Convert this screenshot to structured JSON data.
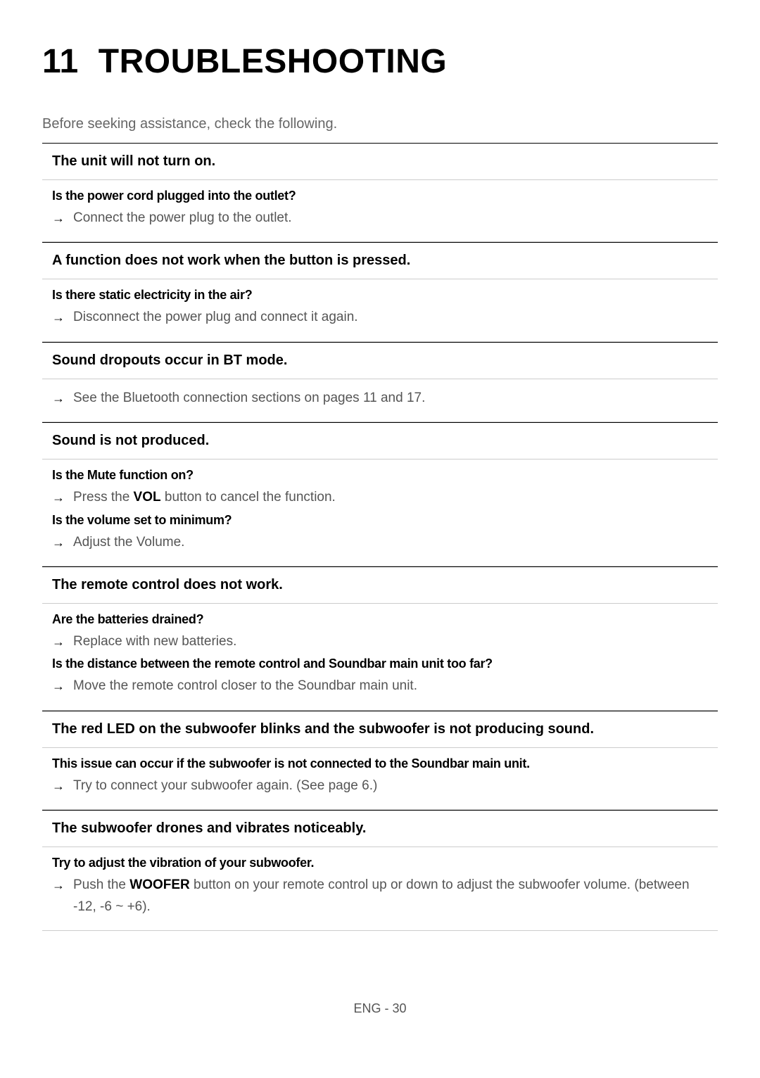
{
  "chapter": {
    "number": "11",
    "title": "TROUBLESHOOTING"
  },
  "intro": "Before seeking assistance, check the following.",
  "sections": [
    {
      "header": "The unit will not turn on.",
      "items": [
        {
          "question": "Is the power cord plugged into the outlet?",
          "answer_parts": [
            {
              "text": "Connect the power plug to the outlet."
            }
          ]
        }
      ]
    },
    {
      "header": "A function does not work when the button is pressed.",
      "items": [
        {
          "question": "Is there static electricity in the air?",
          "answer_parts": [
            {
              "text": "Disconnect the power plug and connect it again."
            }
          ]
        }
      ]
    },
    {
      "header": "Sound dropouts occur in BT mode.",
      "items": [
        {
          "question": "",
          "answer_parts": [
            {
              "text": "See the Bluetooth connection sections on pages 11 and 17."
            }
          ]
        }
      ]
    },
    {
      "header": "Sound is not produced.",
      "items": [
        {
          "question": "Is the Mute function on?",
          "answer_parts": [
            {
              "text": "Press the "
            },
            {
              "text": "VOL",
              "bold": true
            },
            {
              "text": " button to cancel the function."
            }
          ]
        },
        {
          "question": "Is the volume set to minimum?",
          "answer_parts": [
            {
              "text": "Adjust the Volume."
            }
          ]
        }
      ]
    },
    {
      "header": "The remote control does not work.",
      "items": [
        {
          "question": "Are the batteries drained?",
          "answer_parts": [
            {
              "text": "Replace with new batteries."
            }
          ]
        },
        {
          "question": "Is the distance between the remote control and Soundbar main unit too far?",
          "answer_parts": [
            {
              "text": "Move the remote control closer to the Soundbar main unit."
            }
          ]
        }
      ]
    },
    {
      "header": "The red LED on the subwoofer blinks and the subwoofer is not producing sound.",
      "items": [
        {
          "question": "This issue can occur if the subwoofer is not connected to the Soundbar main unit.",
          "answer_parts": [
            {
              "text": "Try to connect your subwoofer again. (See page 6.)"
            }
          ]
        }
      ]
    },
    {
      "header": "The subwoofer drones and vibrates noticeably.",
      "items": [
        {
          "question": "Try to adjust the vibration of your subwoofer.",
          "answer_parts": [
            {
              "text": "Push the "
            },
            {
              "text": "WOOFER",
              "bold": true
            },
            {
              "text": " button on your remote control up or down to adjust the subwoofer volume. (between -12, -6 ~ +6)."
            }
          ]
        }
      ]
    }
  ],
  "footer": "ENG - 30",
  "arrow_glyph": "→"
}
